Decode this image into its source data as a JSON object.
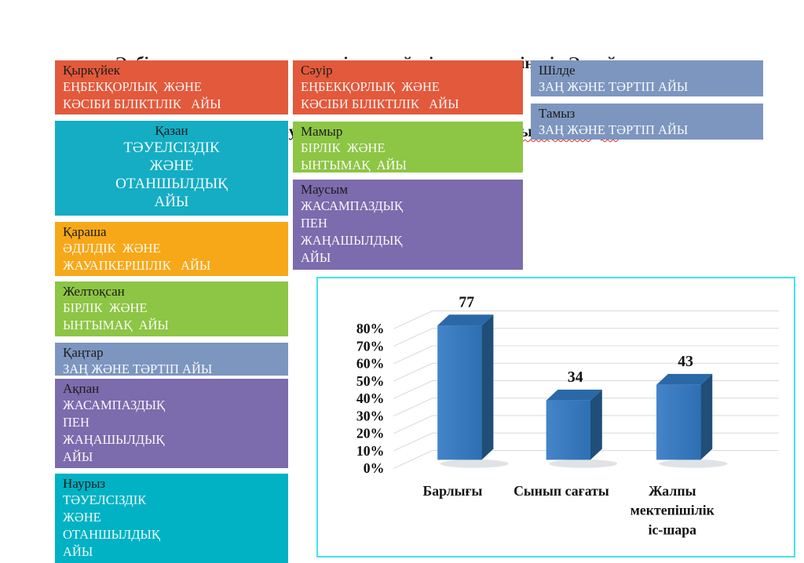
{
  "title": {
    "line1": "Әрбір құндылық оқу процесінде жүйелі түрде көрінеді. Әр ай тұлғаны",
    "line2_prefix": "қалыптастыруға бағытталған ",
    "line2_misspelled": "іс-шараларды қамтыды:"
  },
  "calendar": {
    "columns": [
      {
        "boxes": [
          {
            "id": "sep",
            "month": "Қыркүйек",
            "lines": [
              "ЕҢБЕКҚОРЛЫҚ  ЖӘНЕ",
              "КӘСІБИ БІЛІКТІЛІК   АЙЫ"
            ],
            "color": "#E2593C",
            "center": false
          },
          {
            "id": "oct",
            "month": "Қазан",
            "lines": [
              "ТӘУЕЛСІЗДІК",
              "ЖӘНЕ",
              "ОТАНШЫЛДЫҚ",
              "АЙЫ"
            ],
            "color": "#14ADC3",
            "center": true
          },
          {
            "id": "nov",
            "month": "Қараша",
            "lines": [
              "ӘДІЛДІК  ЖӘНЕ",
              "ЖАУАПКЕРШІЛІК   АЙЫ"
            ],
            "color": "#F7A819",
            "center": false
          },
          {
            "id": "dec",
            "month": "Желтоқсан",
            "lines": [
              "БІРЛІК  ЖӘНЕ",
              "ЫНТЫМАҚ  АЙЫ"
            ],
            "color": "#8DC544",
            "center": false
          },
          {
            "id": "jan",
            "month": "Қаңтар",
            "lines": [
              "ЗАҢ ЖӘНЕ ТӘРТІП АЙЫ"
            ],
            "color": "#7D96BF",
            "center": false
          },
          {
            "id": "feb",
            "month": "Ақпан",
            "lines": [
              "ЖАСАМПАЗДЫҚ",
              "ПЕН",
              "ЖАҢАШЫЛДЫҚ",
              "АЙЫ"
            ],
            "color": "#7C6BAD",
            "center": false
          },
          {
            "id": "mar",
            "month": "Наурыз",
            "lines": [
              "ТӘУЕЛСІЗДІК",
              "ЖӘНЕ",
              "ОТАНШЫЛДЫҚ",
              "АЙЫ"
            ],
            "color": "#00B2C4",
            "center": false
          }
        ]
      },
      {
        "boxes": [
          {
            "id": "apr",
            "month": "Сәуір",
            "lines": [
              "ЕҢБЕКҚОРЛЫҚ  ЖӘНЕ",
              "КӘСІБИ БІЛІКТІЛІК   АЙЫ"
            ],
            "color": "#E2593C",
            "center": false
          },
          {
            "id": "may",
            "month": "Мамыр",
            "lines": [
              "БІРЛІК  ЖӘНЕ",
              "ЫНТЫМАҚ  АЙЫ"
            ],
            "color": "#8DC544",
            "center": false
          },
          {
            "id": "jun",
            "month": "Маусым",
            "lines": [
              "ЖАСАМПАЗДЫҚ",
              "ПЕН",
              "ЖАҢАШЫЛДЫҚ",
              "АЙЫ"
            ],
            "color": "#7C6BAD",
            "center": false
          }
        ]
      },
      {
        "boxes": [
          {
            "id": "jul",
            "month": "Шілде",
            "lines": [
              "ЗАҢ ЖӘНЕ ТӘРТІП АЙЫ"
            ],
            "color": "#7D96BF",
            "center": false
          },
          {
            "id": "aug",
            "month": "Тамыз",
            "lines": [
              "ЗАҢ ЖӘНЕ ТӘРТІП АЙЫ"
            ],
            "color": "#7D96BF",
            "center": false
          }
        ]
      }
    ]
  },
  "chart_data": {
    "type": "bar",
    "style": "3d",
    "categories": [
      "Барлығы",
      "Сынып сағаты",
      "Жалпы мектепішілік іс-шара"
    ],
    "values": [
      77,
      34,
      43
    ],
    "data_labels": [
      "77",
      "34",
      "43"
    ],
    "title": "",
    "xlabel": "",
    "ylabel": "",
    "ylim": [
      0,
      80
    ],
    "ytick_step": 10,
    "ytick_format": "percent",
    "grid": true,
    "legend": false,
    "colors": {
      "bar_front_light": "#4484C9",
      "bar_front_dark": "#2E6FB2",
      "bar_top": "#2A68A7",
      "bar_side": "#1F4E79",
      "gridline": "#D9D9D9",
      "frame_border": "#3FE3EF",
      "text": "#111111"
    }
  }
}
